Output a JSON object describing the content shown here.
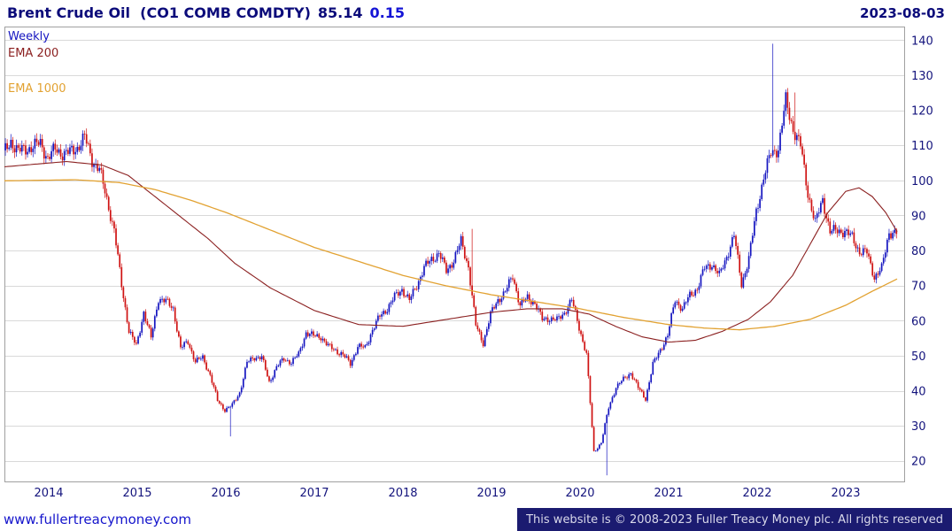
{
  "header": {
    "title": "Brent Crude Oil  (CO1 COMB COMDTY)",
    "price": "85.14",
    "change": "0.15",
    "date": "2023-08-03"
  },
  "footer": {
    "site": "www.fullertreacymoney.com",
    "copyright": "This website is © 2008-2023 Fuller Treacy Money plc. All rights reserved"
  },
  "chart_data": {
    "type": "candlestick",
    "title": "Brent Crude Oil (CO1 COMB COMDTY)",
    "interval": "Weekly",
    "last_price": 85.14,
    "change": 0.15,
    "legend": [
      {
        "label": "Weekly",
        "color": "#1414c0"
      },
      {
        "label": "EMA 200",
        "color": "#8b2020"
      },
      {
        "label": "EMA 1000",
        "color": "#e2a232"
      }
    ],
    "colors": {
      "up": "#1515c0",
      "down": "#cf1212",
      "grid": "#d9d9d9",
      "border": "#a0a0a0",
      "axis_text": "#14147d"
    },
    "ylim": [
      14,
      144
    ],
    "yticks": [
      20,
      30,
      40,
      50,
      60,
      70,
      80,
      90,
      100,
      110,
      120,
      130,
      140
    ],
    "x_start": 2013.5,
    "x_end": 2023.67,
    "xticks": [
      2014,
      2015,
      2016,
      2017,
      2018,
      2019,
      2020,
      2021,
      2022,
      2023
    ],
    "monthly_close": [
      107.7,
      111.3,
      108.4,
      109.1,
      109.7,
      110.8,
      106.4,
      109.0,
      107.8,
      108.1,
      109.5,
      112.4,
      106.0,
      103.2,
      94.7,
      85.9,
      70.2,
      57.3,
      52.8,
      62.6,
      55.1,
      66.5,
      65.6,
      63.6,
      52.2,
      54.2,
      48.4,
      49.6,
      44.6,
      37.3,
      34.7,
      36.0,
      39.6,
      48.1,
      49.7,
      49.7,
      42.5,
      47.0,
      49.1,
      48.3,
      50.5,
      56.8,
      55.7,
      55.6,
      52.8,
      51.7,
      50.3,
      47.9,
      52.7,
      52.4,
      57.5,
      61.4,
      63.6,
      66.9,
      69.1,
      65.8,
      70.3,
      75.2,
      77.6,
      79.4,
      74.3,
      77.4,
      82.7,
      75.5,
      58.7,
      53.8,
      61.9,
      66.0,
      68.4,
      72.8,
      64.5,
      66.6,
      65.2,
      60.4,
      60.8,
      60.2,
      62.4,
      66.0,
      58.2,
      50.5,
      22.7,
      25.3,
      35.3,
      41.2,
      43.3,
      45.3,
      40.9,
      37.9,
      47.6,
      51.8,
      55.9,
      66.1,
      63.5,
      67.3,
      69.3,
      75.1,
      76.3,
      72.9,
      78.5,
      84.4,
      70.6,
      77.8,
      91.2,
      101.0,
      107.9,
      109.3,
      122.8,
      114.8,
      110.0,
      96.5,
      87.9,
      94.8,
      85.4,
      85.9,
      85.5,
      83.9,
      79.8,
      79.5,
      72.6,
      74.9,
      85.4,
      85.14
    ],
    "extremes": [
      {
        "t": 2016.05,
        "low": 27.1
      },
      {
        "t": 2018.78,
        "high": 86.3
      },
      {
        "t": 2020.29,
        "low": 16.0
      },
      {
        "t": 2022.17,
        "high": 139.1
      },
      {
        "t": 2022.42,
        "high": 125.2
      }
    ],
    "ema200_anchors": [
      [
        2013.5,
        104.0
      ],
      [
        2014.2,
        105.5
      ],
      [
        2014.6,
        104.5
      ],
      [
        2014.9,
        101.5
      ],
      [
        2015.2,
        95.5
      ],
      [
        2015.5,
        89.5
      ],
      [
        2015.8,
        83.5
      ],
      [
        2016.1,
        76.5
      ],
      [
        2016.5,
        69.5
      ],
      [
        2017.0,
        63.0
      ],
      [
        2017.5,
        59.0
      ],
      [
        2018.0,
        58.5
      ],
      [
        2018.5,
        60.5
      ],
      [
        2019.0,
        62.5
      ],
      [
        2019.4,
        63.5
      ],
      [
        2019.8,
        63.5
      ],
      [
        2020.1,
        62.0
      ],
      [
        2020.4,
        58.5
      ],
      [
        2020.7,
        55.5
      ],
      [
        2021.0,
        54.0
      ],
      [
        2021.3,
        54.5
      ],
      [
        2021.6,
        57.0
      ],
      [
        2021.9,
        60.5
      ],
      [
        2022.15,
        65.5
      ],
      [
        2022.4,
        73.0
      ],
      [
        2022.6,
        82.0
      ],
      [
        2022.8,
        91.0
      ],
      [
        2023.0,
        97.0
      ],
      [
        2023.15,
        98.0
      ],
      [
        2023.3,
        95.5
      ],
      [
        2023.45,
        91.0
      ],
      [
        2023.58,
        85.5
      ]
    ],
    "ema1000_anchors": [
      [
        2013.5,
        100.0
      ],
      [
        2014.3,
        100.3
      ],
      [
        2014.8,
        99.5
      ],
      [
        2015.2,
        97.5
      ],
      [
        2015.6,
        94.5
      ],
      [
        2016.0,
        91.0
      ],
      [
        2016.5,
        86.0
      ],
      [
        2017.0,
        81.0
      ],
      [
        2017.5,
        77.0
      ],
      [
        2018.0,
        73.0
      ],
      [
        2018.5,
        70.0
      ],
      [
        2019.0,
        67.5
      ],
      [
        2019.5,
        65.5
      ],
      [
        2020.0,
        63.5
      ],
      [
        2020.5,
        61.0
      ],
      [
        2021.0,
        59.0
      ],
      [
        2021.4,
        58.0
      ],
      [
        2021.8,
        57.5
      ],
      [
        2022.2,
        58.5
      ],
      [
        2022.6,
        60.5
      ],
      [
        2023.0,
        64.5
      ],
      [
        2023.3,
        68.5
      ],
      [
        2023.58,
        72.0
      ]
    ]
  }
}
